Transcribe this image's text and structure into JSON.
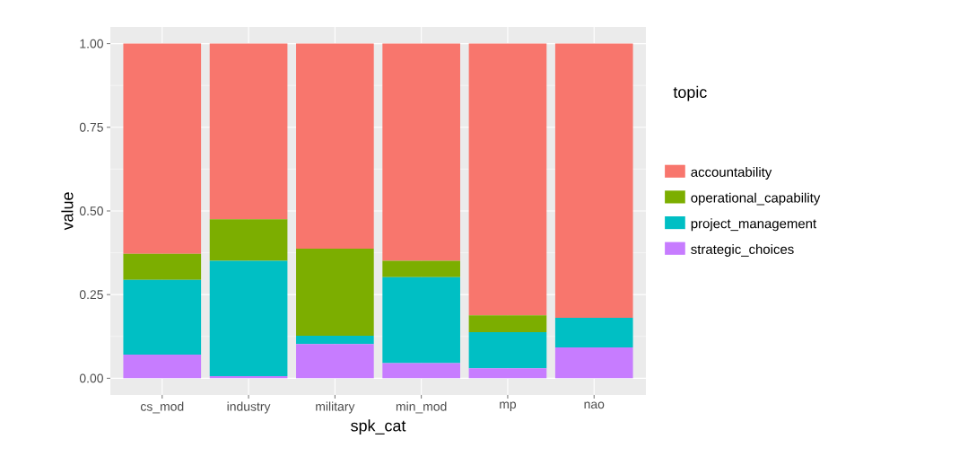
{
  "chart_data": {
    "type": "bar",
    "stacked": true,
    "xlabel": "spk_cat",
    "ylabel": "value",
    "legend_title": "topic",
    "legend": "right",
    "grid": true,
    "categories": [
      "cs_mod",
      "industry",
      "military",
      "min_mod",
      "mp",
      "nao"
    ],
    "ylim": [
      -0.05,
      1.05
    ],
    "yticks": [
      {
        "value": 0,
        "label": "0.00"
      },
      {
        "value": 0.25,
        "label": "0.25"
      },
      {
        "value": 0.5,
        "label": "0.50"
      },
      {
        "value": 0.75,
        "label": "0.75"
      },
      {
        "value": 1,
        "label": "1.00"
      }
    ],
    "series": [
      {
        "name": "strategic_choices",
        "color": "#c77cff",
        "values": [
          0.071,
          0.006,
          0.102,
          0.045,
          0.03,
          0.092
        ]
      },
      {
        "name": "project_management",
        "color": "#00bfc4",
        "values": [
          0.223,
          0.345,
          0.025,
          0.257,
          0.108,
          0.089
        ]
      },
      {
        "name": "operational_capability",
        "color": "#7cae00",
        "values": [
          0.078,
          0.124,
          0.26,
          0.049,
          0.05,
          0
        ]
      },
      {
        "name": "accountability",
        "color": "#f8766d",
        "values": [
          0.628,
          0.525,
          0.613,
          0.649,
          0.812,
          0.819
        ]
      }
    ]
  }
}
